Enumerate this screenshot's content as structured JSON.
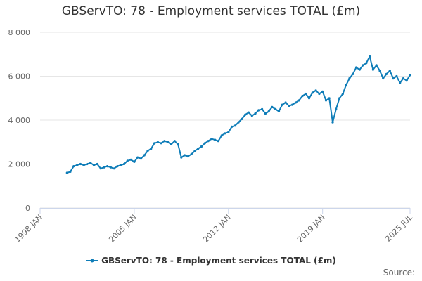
{
  "title": "GBServTO: 78 - Employment services TOTAL (£m)",
  "legend_label": "GBServTO: 78 - Employment services TOTAL (£m)",
  "source_label": "Source:",
  "series_color": "#0f7db8",
  "chart_data": {
    "type": "line",
    "title": "GBServTO: 78 - Employment services TOTAL (£m)",
    "xlabel": "",
    "ylabel": "",
    "ylim": [
      0,
      8000
    ],
    "yticks": [
      0,
      2000,
      4000,
      6000,
      8000
    ],
    "ytick_labels": [
      "0",
      "2 000",
      "4 000",
      "6 000",
      "8 000"
    ],
    "xlim": [
      "1998-01",
      "2025-07"
    ],
    "xticks": [
      "1998-01",
      "2005-01",
      "2012-01",
      "2019-01",
      "2025-07"
    ],
    "xtick_labels": [
      "1998 JAN",
      "2005 JAN",
      "2012 JAN",
      "2019 JAN",
      "2025 JUL"
    ],
    "grid": true,
    "legend_position": "bottom",
    "series": [
      {
        "name": "GBServTO: 78 - Employment services TOTAL (£m)",
        "color": "#0f7db8",
        "x": [
          "2000-01",
          "2000-04",
          "2000-07",
          "2000-10",
          "2001-01",
          "2001-04",
          "2001-07",
          "2001-10",
          "2002-01",
          "2002-04",
          "2002-07",
          "2002-10",
          "2003-01",
          "2003-04",
          "2003-07",
          "2003-10",
          "2004-01",
          "2004-04",
          "2004-07",
          "2004-10",
          "2005-01",
          "2005-04",
          "2005-07",
          "2005-10",
          "2006-01",
          "2006-04",
          "2006-07",
          "2006-10",
          "2007-01",
          "2007-04",
          "2007-07",
          "2007-10",
          "2008-01",
          "2008-04",
          "2008-07",
          "2008-10",
          "2009-01",
          "2009-04",
          "2009-07",
          "2009-10",
          "2010-01",
          "2010-04",
          "2010-07",
          "2010-10",
          "2011-01",
          "2011-04",
          "2011-07",
          "2011-10",
          "2012-01",
          "2012-04",
          "2012-07",
          "2012-10",
          "2013-01",
          "2013-04",
          "2013-07",
          "2013-10",
          "2014-01",
          "2014-04",
          "2014-07",
          "2014-10",
          "2015-01",
          "2015-04",
          "2015-07",
          "2015-10",
          "2016-01",
          "2016-04",
          "2016-07",
          "2016-10",
          "2017-01",
          "2017-04",
          "2017-07",
          "2017-10",
          "2018-01",
          "2018-04",
          "2018-07",
          "2018-10",
          "2019-01",
          "2019-04",
          "2019-07",
          "2019-10",
          "2020-01",
          "2020-04",
          "2020-07",
          "2020-10",
          "2021-01",
          "2021-04",
          "2021-07",
          "2021-10",
          "2022-01",
          "2022-04",
          "2022-07",
          "2022-10",
          "2023-01",
          "2023-04",
          "2023-07",
          "2023-10",
          "2024-01",
          "2024-04",
          "2024-07",
          "2024-10",
          "2025-01",
          "2025-04",
          "2025-07"
        ],
        "values": [
          1600,
          1650,
          1900,
          1950,
          2000,
          1950,
          2000,
          2050,
          1950,
          2000,
          1800,
          1850,
          1900,
          1850,
          1800,
          1900,
          1950,
          2000,
          2150,
          2200,
          2100,
          2300,
          2250,
          2400,
          2600,
          2700,
          2950,
          3000,
          2950,
          3050,
          3000,
          2900,
          3050,
          2900,
          2300,
          2400,
          2350,
          2450,
          2600,
          2700,
          2800,
          2950,
          3050,
          3150,
          3100,
          3050,
          3300,
          3400,
          3450,
          3700,
          3750,
          3900,
          4050,
          4250,
          4350,
          4200,
          4300,
          4450,
          4500,
          4300,
          4400,
          4600,
          4500,
          4400,
          4700,
          4800,
          4650,
          4700,
          4800,
          4900,
          5100,
          5200,
          5000,
          5250,
          5350,
          5200,
          5300,
          4900,
          5000,
          3900,
          4500,
          5000,
          5200,
          5600,
          5900,
          6100,
          6400,
          6300,
          6500,
          6600,
          6900,
          6300,
          6500,
          6250,
          5900,
          6100,
          6250,
          5900,
          6000,
          5700,
          5900,
          5800,
          6050
        ]
      }
    ]
  }
}
